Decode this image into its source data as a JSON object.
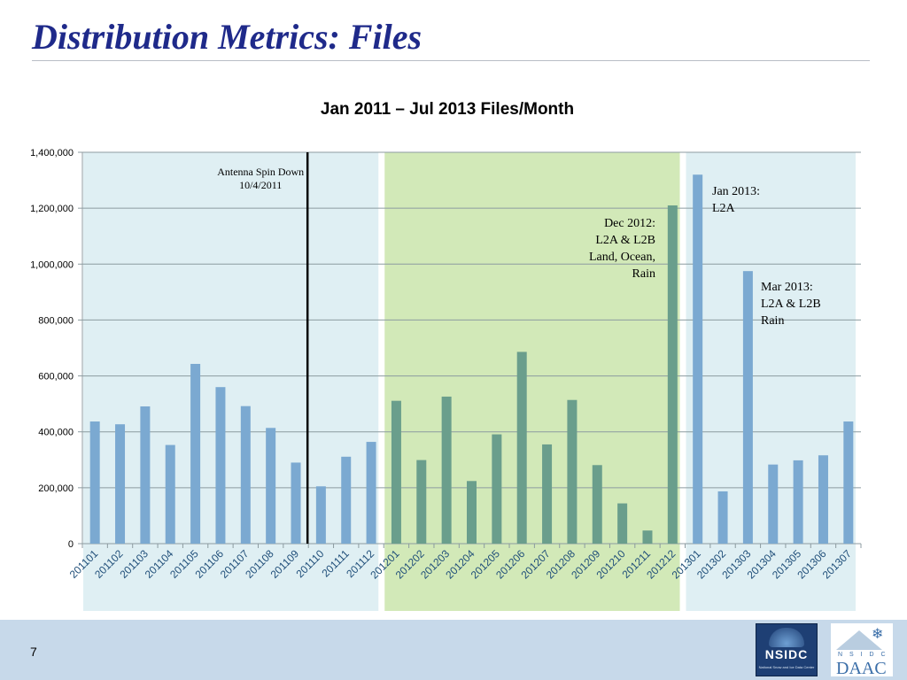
{
  "slide": {
    "title": "Distribution Metrics: Files",
    "page_number": "7"
  },
  "logos": {
    "nsidc": {
      "wordmark": "NSIDC",
      "small_text": "National Snow and Ice Data Center"
    },
    "daac": {
      "small_text": "N S I D C",
      "wordmark": "DAAC"
    }
  },
  "colors": {
    "bar_light": "#7ba9d1",
    "bar_green_period": "#6a9e8c",
    "band_blue": "#dfeff3",
    "band_green": "#d2e9b8",
    "gridline": "#8c9ba0",
    "antenna_line": "#000000",
    "title": "#1f2a8a"
  },
  "chart_data": {
    "type": "bar",
    "title": "Jan 2011 – Jul 2013 Files/Month",
    "xlabel": "",
    "ylabel": "",
    "ylim": [
      0,
      1400000
    ],
    "yticks": [
      "0",
      "200,000",
      "400,000",
      "600,000",
      "800,000",
      "1,000,000",
      "1,200,000",
      "1,400,000"
    ],
    "grid": true,
    "categories": [
      "201101",
      "201102",
      "201103",
      "201104",
      "201105",
      "201106",
      "201107",
      "201108",
      "201109",
      "201110",
      "201111",
      "201112",
      "201201",
      "201202",
      "201203",
      "201204",
      "201205",
      "201206",
      "201207",
      "201208",
      "201209",
      "201210",
      "201211",
      "201212",
      "201301",
      "201302",
      "201303",
      "201304",
      "201305",
      "201306",
      "201307"
    ],
    "values": [
      437000,
      427000,
      491000,
      353000,
      643000,
      560000,
      492000,
      414000,
      290000,
      205000,
      311000,
      364000,
      511000,
      299000,
      526000,
      224000,
      391000,
      686000,
      355000,
      514000,
      281000,
      144000,
      47000,
      1210000,
      1320000,
      187000,
      975000,
      283000,
      298000,
      316000,
      437000
    ],
    "bands": [
      {
        "from": "201101",
        "to": "201112",
        "color": "band_blue"
      },
      {
        "from": "201201",
        "to": "201212",
        "color": "band_green"
      },
      {
        "from": "201301",
        "to": "201307",
        "color": "band_blue"
      }
    ],
    "marker_line": {
      "after": "201109",
      "lines": [
        "Antenna Spin Down",
        "10/4/2011"
      ]
    },
    "annotations": [
      {
        "near": "201212",
        "align": "right",
        "lines": [
          "Dec 2012:",
          "L2A & L2B",
          "Land, Ocean,",
          "Rain"
        ]
      },
      {
        "near": "201301",
        "align": "left",
        "lines": [
          "Jan 2013:",
          "L2A"
        ]
      },
      {
        "near": "201303",
        "align": "left",
        "lines": [
          "Mar 2013:",
          "L2A & L2B",
          "Rain"
        ]
      }
    ]
  }
}
